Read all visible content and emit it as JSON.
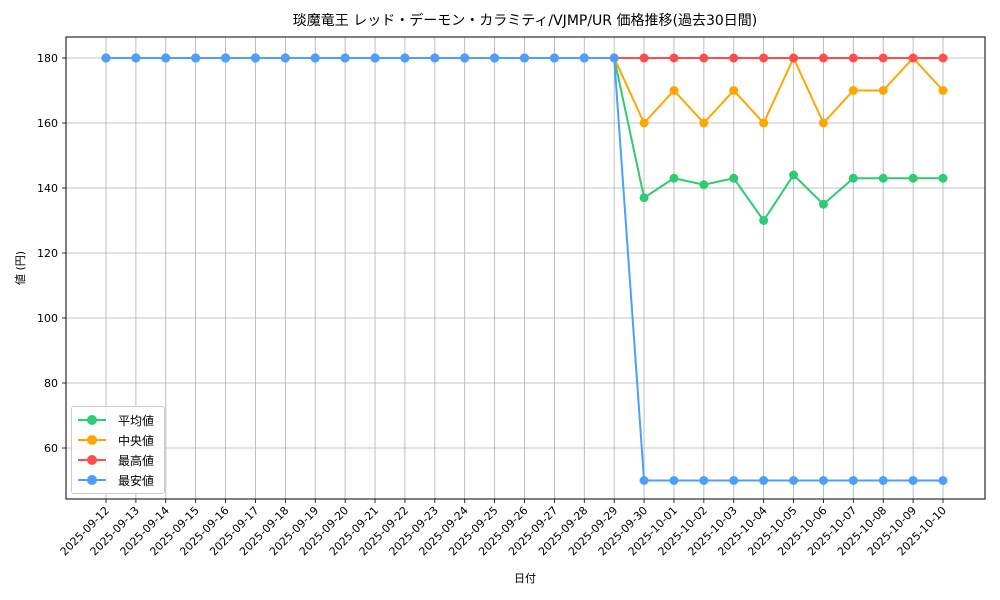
{
  "chart_data": {
    "type": "line",
    "title": "琰魔竜王 レッド・デーモン・カラミティ/VJMP/UR 価格推移(過去30日間)",
    "xlabel": "日付",
    "ylabel": "値 (円)",
    "ylim": [
      43,
      186
    ],
    "yticks": [
      60,
      80,
      100,
      120,
      140,
      160,
      180
    ],
    "grid": true,
    "legend_position": "lower left",
    "categories": [
      "2025-09-12",
      "2025-09-13",
      "2025-09-14",
      "2025-09-15",
      "2025-09-16",
      "2025-09-17",
      "2025-09-18",
      "2025-09-19",
      "2025-09-20",
      "2025-09-21",
      "2025-09-22",
      "2025-09-23",
      "2025-09-24",
      "2025-09-25",
      "2025-09-26",
      "2025-09-27",
      "2025-09-28",
      "2025-09-29",
      "2025-09-30",
      "2025-10-01",
      "2025-10-02",
      "2025-10-03",
      "2025-10-04",
      "2025-10-05",
      "2025-10-06",
      "2025-10-07",
      "2025-10-08",
      "2025-10-09",
      "2025-10-10"
    ],
    "series": [
      {
        "name": "平均値",
        "color": "#2ecc71",
        "values": [
          180,
          180,
          180,
          180,
          180,
          180,
          180,
          180,
          180,
          180,
          180,
          180,
          180,
          180,
          180,
          180,
          180,
          180,
          137,
          143,
          141,
          143,
          130,
          144,
          135,
          143,
          143,
          143,
          143
        ]
      },
      {
        "name": "中央値",
        "color": "#ffa500",
        "values": [
          180,
          180,
          180,
          180,
          180,
          180,
          180,
          180,
          180,
          180,
          180,
          180,
          180,
          180,
          180,
          180,
          180,
          180,
          160,
          170,
          160,
          170,
          160,
          180,
          160,
          170,
          170,
          180,
          170
        ]
      },
      {
        "name": "最高値",
        "color": "#ff4d4d",
        "values": [
          180,
          180,
          180,
          180,
          180,
          180,
          180,
          180,
          180,
          180,
          180,
          180,
          180,
          180,
          180,
          180,
          180,
          180,
          180,
          180,
          180,
          180,
          180,
          180,
          180,
          180,
          180,
          180,
          180
        ]
      },
      {
        "name": "最安値",
        "color": "#4d9fff",
        "values": [
          180,
          180,
          180,
          180,
          180,
          180,
          180,
          180,
          180,
          180,
          180,
          180,
          180,
          180,
          180,
          180,
          180,
          180,
          50,
          50,
          50,
          50,
          50,
          50,
          50,
          50,
          50,
          50,
          50
        ]
      }
    ]
  }
}
